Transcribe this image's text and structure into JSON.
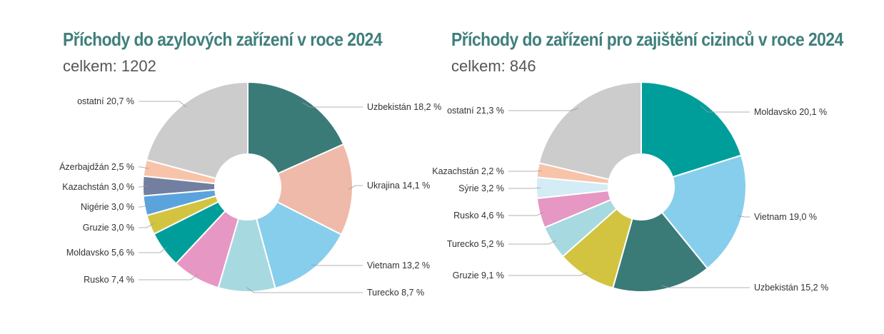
{
  "chart_data": [
    {
      "type": "pie",
      "title": "Příchody do azylových zařízení v roce 2024",
      "subtitle": "celkem: 1202",
      "slices": [
        {
          "label": "Uzbekistán",
          "value": 18.2,
          "text": "Uzbekistán 18,2 %",
          "color": "#3a7b78"
        },
        {
          "label": "Ukrajina",
          "value": 14.1,
          "text": "Ukrajina 14,1 %",
          "color": "#efbaaa"
        },
        {
          "label": "Vietnam",
          "value": 13.2,
          "text": "Vietnam 13,2 %",
          "color": "#87ceec"
        },
        {
          "label": "Turecko",
          "value": 8.7,
          "text": "Turecko 8,7 %",
          "color": "#a7d9e0"
        },
        {
          "label": "Rusko",
          "value": 7.4,
          "text": "Rusko 7,4 %",
          "color": "#e697c3"
        },
        {
          "label": "Moldavsko",
          "value": 5.6,
          "text": "Moldavsko 5,6 %",
          "color": "#009e9a"
        },
        {
          "label": "Gruzie",
          "value": 3.0,
          "text": "Gruzie 3,0 %",
          "color": "#d2c440"
        },
        {
          "label": "Nigérie",
          "value": 3.0,
          "text": "Nigérie 3,0 %",
          "color": "#5ba3dc"
        },
        {
          "label": "Kazachstán",
          "value": 3.0,
          "text": "Kazachstán 3,0 %",
          "color": "#727fa0"
        },
        {
          "label": "Ázerbajdžán",
          "value": 2.5,
          "text": "Ázerbajdžán 2,5 %",
          "color": "#f7c4a9"
        },
        {
          "label": "ostatní",
          "value": 20.7,
          "text": "ostatní 20,7 %",
          "color": "#cccccc"
        }
      ]
    },
    {
      "type": "pie",
      "title": "Příchody do zařízení pro zajištění cizinců v roce 2024",
      "subtitle": "celkem: 846",
      "slices": [
        {
          "label": "Moldavsko",
          "value": 20.1,
          "text": "Moldavsko 20,1 %",
          "color": "#009e9a"
        },
        {
          "label": "Vietnam",
          "value": 19.0,
          "text": "Vietnam 19,0 %",
          "color": "#87ceec"
        },
        {
          "label": "Uzbekistán",
          "value": 15.2,
          "text": "Uzbekistán 15,2 %",
          "color": "#3a7b78"
        },
        {
          "label": "Gruzie",
          "value": 9.1,
          "text": "Gruzie 9,1 %",
          "color": "#d2c440"
        },
        {
          "label": "Turecko",
          "value": 5.2,
          "text": "Turecko 5,2 %",
          "color": "#a7d9e0"
        },
        {
          "label": "Rusko",
          "value": 4.6,
          "text": "Rusko 4,6 %",
          "color": "#e697c3"
        },
        {
          "label": "Sýrie",
          "value": 3.2,
          "text": "Sýrie 3,2 %",
          "color": "#d3ecf6"
        },
        {
          "label": "Kazachstán",
          "value": 2.2,
          "text": "Kazachstán 2,2 %",
          "color": "#f7c4a9"
        },
        {
          "label": "ostatní",
          "value": 21.3,
          "text": "ostatní 21,3 %",
          "color": "#cccccc"
        }
      ]
    }
  ]
}
